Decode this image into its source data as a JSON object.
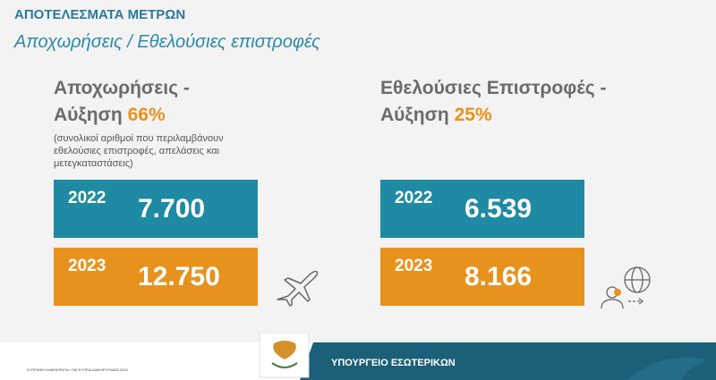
{
  "header": {
    "label": "ΑΠΟΤΕΛΕΣΜΑΤΑ ΜΕΤΡΩΝ",
    "subtitle": "Αποχωρήσεις / Εθελούσιες επιστροφές"
  },
  "left": {
    "title_line1": "Αποχωρήσεις -",
    "title_line2": "Αύξηση",
    "increase": "66%",
    "note": "(συνολικοί αριθμοί που περιλαμβάνουν εθελούσιες επιστροφές, απελάσεις και μετεγκαταστάσεις)",
    "boxes": [
      {
        "year": "2022",
        "value": "7.700"
      },
      {
        "year": "2023",
        "value": "12.750"
      }
    ]
  },
  "right": {
    "title_line1": "Εθελούσιες Επιστροφές -",
    "title_line2": "Αύξηση",
    "increase": "25%",
    "boxes": [
      {
        "year": "2022",
        "value": "6.539"
      },
      {
        "year": "2023",
        "value": "8.166"
      }
    ]
  },
  "footer": {
    "note": "ΚΥΠΡΙΑΚΗ ΔΗΜΟΚΡΑΤΙΑ / ΠΑΓΚΥΠΡΙΑ ΔΙΑΚΗΡΥΓΜΑΤΑ 2024",
    "ministry": "ΥΠΟΥΡΓΕΙΟ ΕΣΩΤΕΡΙΚΩΝ"
  }
}
